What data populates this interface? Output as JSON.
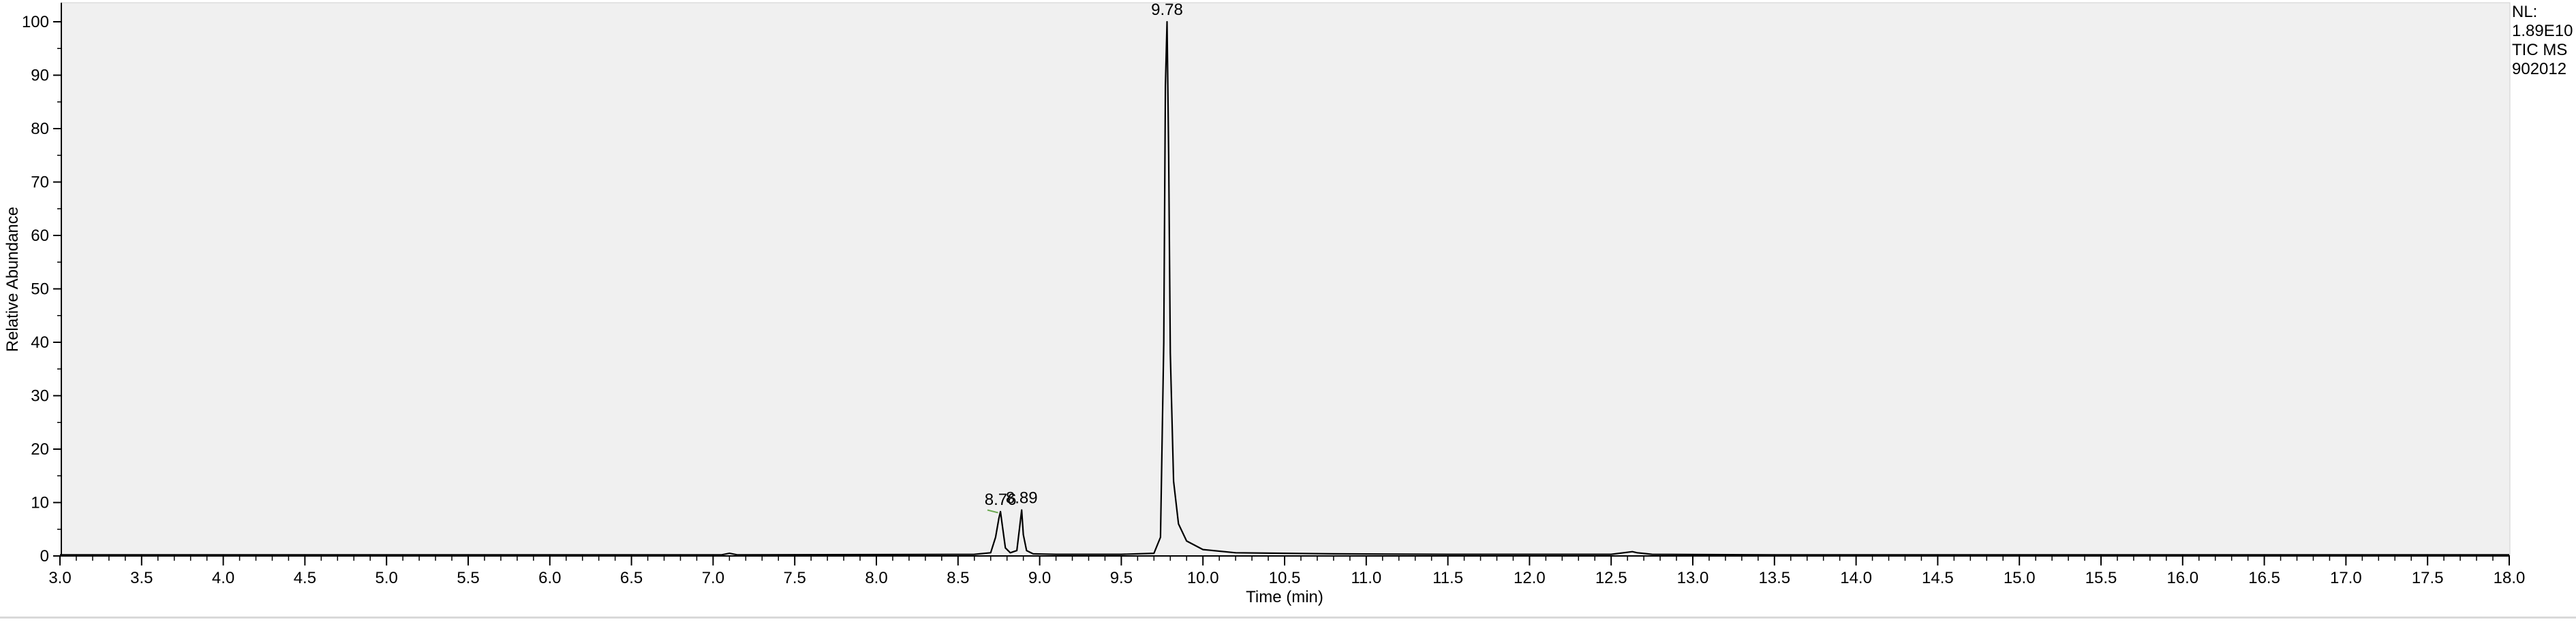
{
  "chart_data": {
    "type": "line",
    "xlabel": "Time (min)",
    "ylabel": "Relative Abundance",
    "xlim": [
      3.0,
      18.0
    ],
    "ylim": [
      0,
      100
    ],
    "x_ticks": [
      3.0,
      3.5,
      4.0,
      4.5,
      5.0,
      5.5,
      6.0,
      6.5,
      7.0,
      7.5,
      8.0,
      8.5,
      9.0,
      9.5,
      10.0,
      10.5,
      11.0,
      11.5,
      12.0,
      12.5,
      13.0,
      13.5,
      14.0,
      14.5,
      15.0,
      15.5,
      16.0,
      16.5,
      17.0,
      17.5,
      18.0
    ],
    "x_tick_labels": [
      "3.0",
      "3.5",
      "4.0",
      "4.5",
      "5.0",
      "5.5",
      "6.0",
      "6.5",
      "7.0",
      "7.5",
      "8.0",
      "8.5",
      "9.0",
      "9.5",
      "10.0",
      "10.5",
      "11.0",
      "11.5",
      "12.0",
      "12.5",
      "13.0",
      "13.5",
      "14.0",
      "14.5",
      "15.0",
      "15.5",
      "16.0",
      "16.5",
      "17.0",
      "17.5",
      "18.0"
    ],
    "y_ticks": [
      0,
      10,
      20,
      30,
      40,
      50,
      60,
      70,
      80,
      90,
      100
    ],
    "y_tick_labels": [
      "0",
      "10",
      "20",
      "30",
      "40",
      "50",
      "60",
      "70",
      "80",
      "90",
      "100"
    ],
    "series": [
      {
        "x": [
          3.0,
          7.05,
          7.1,
          7.15,
          8.6,
          8.7,
          8.73,
          8.75,
          8.76,
          8.77,
          8.79,
          8.82,
          8.86,
          8.88,
          8.89,
          8.9,
          8.92,
          8.96,
          9.1,
          9.5,
          9.7,
          9.74,
          9.76,
          9.77,
          9.78,
          9.79,
          9.8,
          9.82,
          9.85,
          9.9,
          10.0,
          10.2,
          10.5,
          10.8,
          11.5,
          12.5,
          12.63,
          12.66,
          12.75,
          13.5,
          18.0
        ],
        "y": [
          0.2,
          0.2,
          0.5,
          0.2,
          0.3,
          0.6,
          3.5,
          7.0,
          8.3,
          6.0,
          1.5,
          0.6,
          1.0,
          6.0,
          8.6,
          4.0,
          1.0,
          0.4,
          0.3,
          0.3,
          0.5,
          3.5,
          40.0,
          88.0,
          100.0,
          75.0,
          38.0,
          14.0,
          6.0,
          2.8,
          1.2,
          0.6,
          0.5,
          0.4,
          0.3,
          0.3,
          0.8,
          0.6,
          0.3,
          0.2,
          0.2
        ],
        "color": "#000000"
      }
    ],
    "peak_labels": [
      {
        "text": "8.76",
        "x": 8.76,
        "y": 8.3
      },
      {
        "text": "8.89",
        "x": 8.89,
        "y": 8.6
      },
      {
        "text": "9.78",
        "x": 9.78,
        "y": 100.0
      }
    ],
    "grid": false,
    "plot_background": "#f0f0f0"
  },
  "info_panel": {
    "line1": "NL:",
    "line2": "1.89E10",
    "line3": "TIC  MS",
    "line4": "902012"
  }
}
